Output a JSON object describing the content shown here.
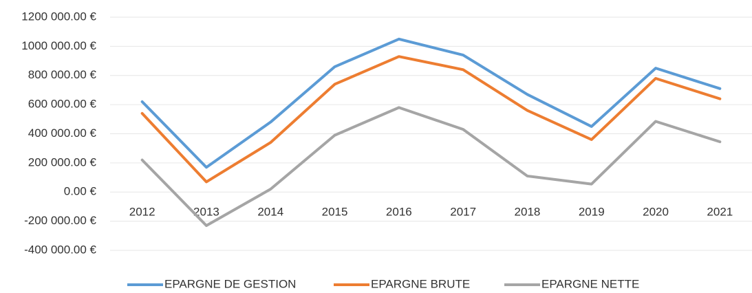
{
  "chart_data": {
    "type": "line",
    "categories": [
      "2012",
      "2013",
      "2014",
      "2015",
      "2016",
      "2017",
      "2018",
      "2019",
      "2020",
      "2021"
    ],
    "series": [
      {
        "name": "EPARGNE DE GESTION",
        "color": "#5b9bd5",
        "values": [
          620000,
          170000,
          480000,
          860000,
          1050000,
          940000,
          670000,
          450000,
          850000,
          710000
        ]
      },
      {
        "name": "EPARGNE BRUTE",
        "color": "#ed7d31",
        "values": [
          540000,
          70000,
          340000,
          740000,
          930000,
          840000,
          560000,
          360000,
          780000,
          640000
        ]
      },
      {
        "name": "EPARGNE NETTE",
        "color": "#a5a5a5",
        "values": [
          220000,
          -230000,
          20000,
          390000,
          580000,
          430000,
          110000,
          55000,
          485000,
          345000
        ]
      }
    ],
    "ylim": [
      -400000,
      1200000
    ],
    "yticks": [
      {
        "value": -400000,
        "label": "-400 000.00 €"
      },
      {
        "value": -200000,
        "label": "-200 000.00 €"
      },
      {
        "value": 0,
        "label": "0.00 €"
      },
      {
        "value": 200000,
        "label": "200 000.00 €"
      },
      {
        "value": 400000,
        "label": "400 000.00 €"
      },
      {
        "value": 600000,
        "label": "600 000.00 €"
      },
      {
        "value": 800000,
        "label": "800 000.00 €"
      },
      {
        "value": 1000000,
        "label": "1000 000.00 €"
      },
      {
        "value": 1200000,
        "label": "1200 000.00 €"
      }
    ],
    "grid": true,
    "legend": "bottom"
  }
}
